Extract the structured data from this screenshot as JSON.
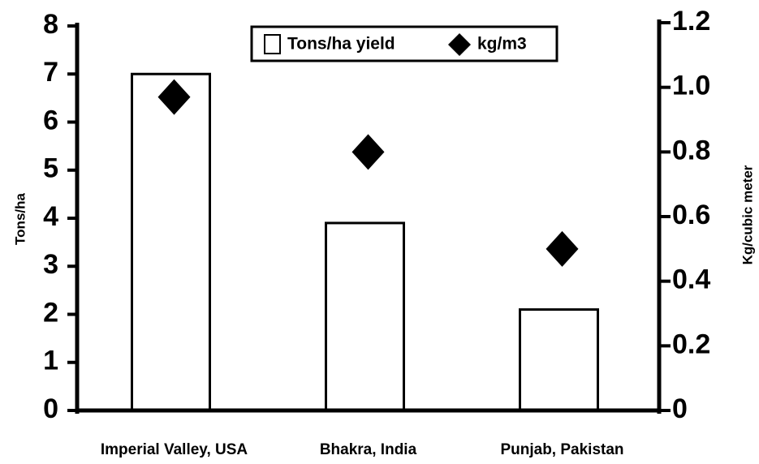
{
  "chart_data": {
    "type": "bar",
    "ylabel": "Tons/ha",
    "y2label": "Kg/cubic meter",
    "categories": [
      "Imperial Valley, USA",
      "Bhakra, India",
      "Punjab, Pakistan"
    ],
    "series": [
      {
        "name": "Tons/ha yield",
        "color": "#ffffff",
        "values": [
          7.0,
          3.9,
          2.1
        ]
      },
      {
        "name": "kg/m3",
        "color": "#000000",
        "values": [
          0.97,
          0.8,
          0.5
        ],
        "axis": "y2"
      }
    ],
    "ylim": [
      0,
      8
    ],
    "yticks": [
      0,
      1,
      2,
      3,
      4,
      5,
      6,
      7,
      8
    ],
    "y2lim": [
      0,
      1.2
    ],
    "y2ticks": [
      0,
      0.2,
      0.4,
      0.6,
      0.8,
      {
        "value": 1,
        "label": "1.0"
      },
      1.2
    ]
  }
}
